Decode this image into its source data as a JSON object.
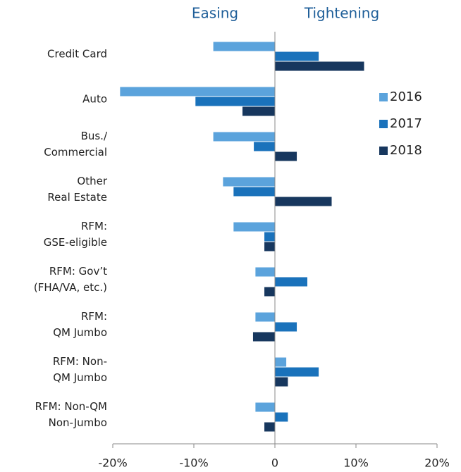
{
  "chart_data": {
    "type": "bar",
    "orientation": "horizontal",
    "headers": [
      "Easing",
      "Tightening"
    ],
    "categories": [
      [
        "Credit Card"
      ],
      [
        "Auto"
      ],
      [
        "Bus./",
        "Commercial"
      ],
      [
        "Other",
        "Real Estate"
      ],
      [
        "RFM:",
        "GSE-eligible"
      ],
      [
        "RFM: Gov’t",
        "(FHA/VA, etc.)"
      ],
      [
        "RFM:",
        "QM Jumbo"
      ],
      [
        "RFM: Non-",
        "QM Jumbo"
      ],
      [
        "RFM: Non-QM",
        "Non-Jumbo"
      ]
    ],
    "series": [
      {
        "name": "2016",
        "color": "#5ba3dc",
        "values": [
          -7.6,
          -19.1,
          -7.6,
          -6.4,
          -5.1,
          -2.4,
          -2.4,
          1.4,
          -2.4
        ]
      },
      {
        "name": "2017",
        "color": "#1a72bb",
        "values": [
          5.4,
          -9.8,
          -2.6,
          -5.1,
          -1.3,
          4.0,
          2.7,
          5.4,
          1.6
        ]
      },
      {
        "name": "2018",
        "color": "#17375e",
        "values": [
          11.0,
          -4.0,
          2.7,
          7.0,
          -1.3,
          -1.3,
          -2.7,
          1.6,
          -1.3
        ]
      }
    ],
    "xlim": [
      -20,
      20
    ],
    "xticks": [
      {
        "value": -20,
        "label": "-20%"
      },
      {
        "value": -10,
        "label": "-10%"
      },
      0,
      {
        "value": 10,
        "label": "10%"
      },
      {
        "value": 20,
        "label": "20%"
      }
    ],
    "legend": "right"
  }
}
